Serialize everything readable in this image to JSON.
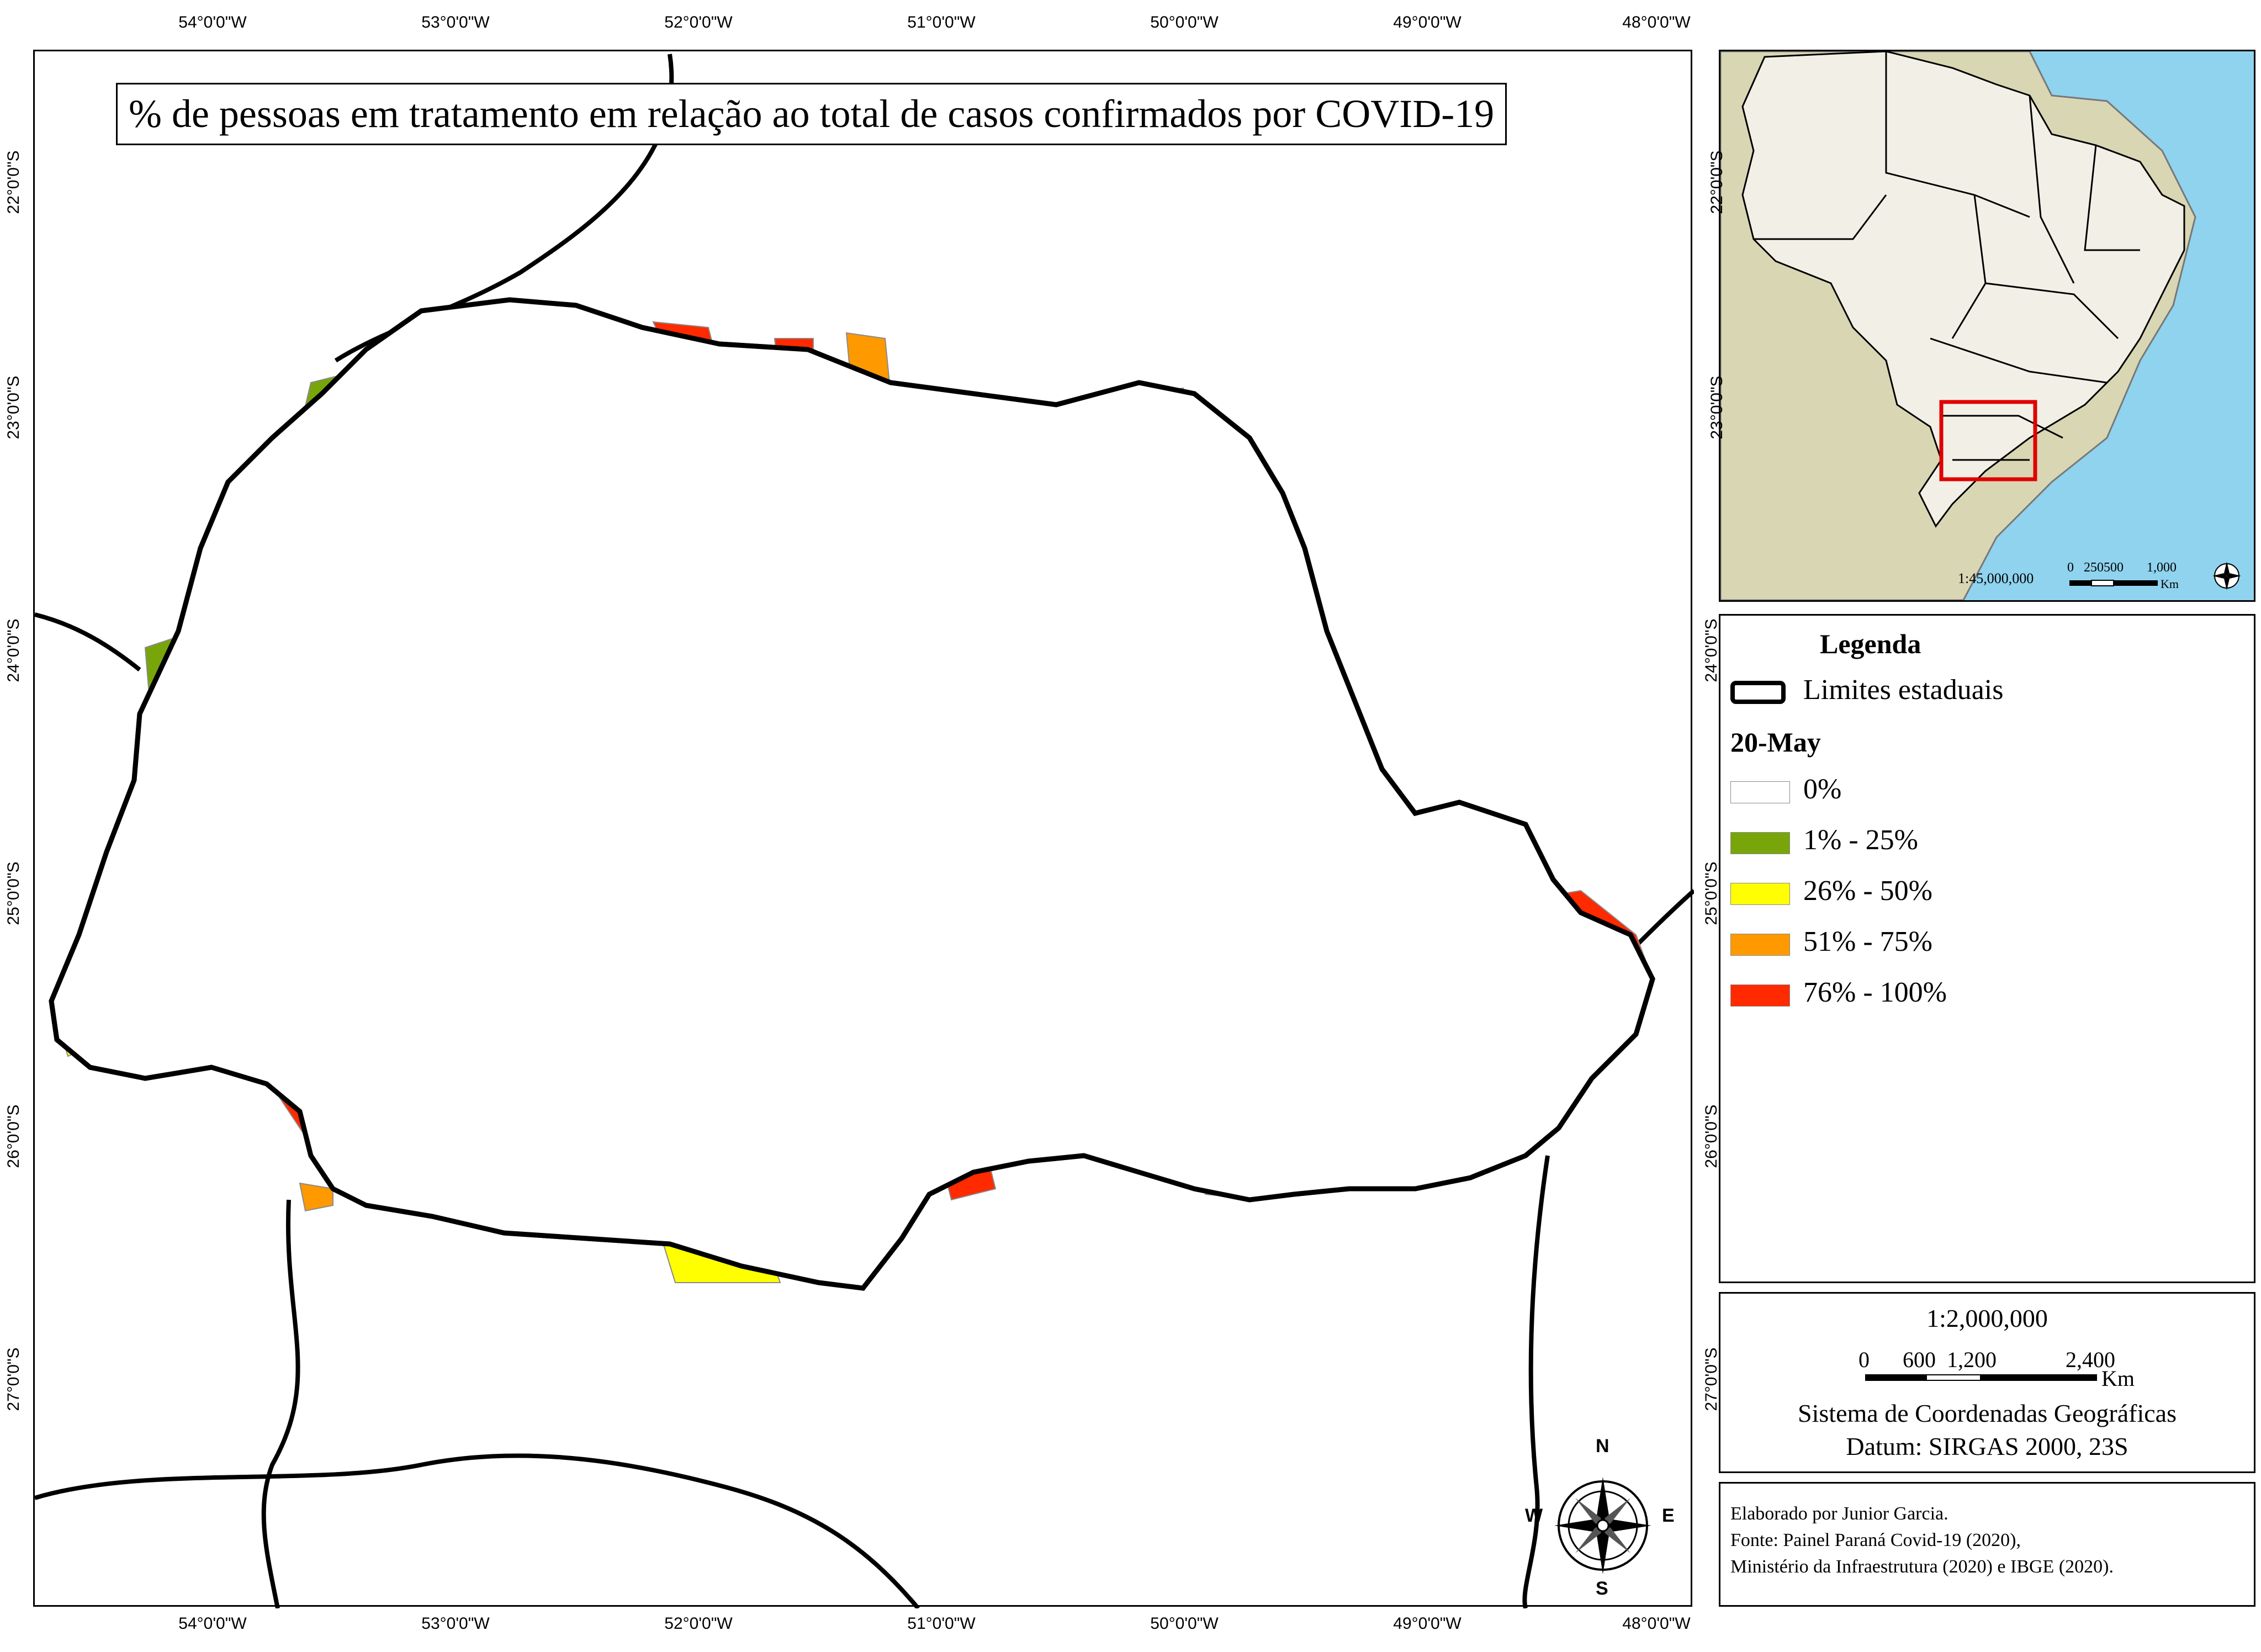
{
  "map": {
    "title": "% de pessoas em tratamento em relação ao total de casos confirmados por COVID-19",
    "lon_ticks": [
      "54°0'0\"W",
      "53°0'0\"W",
      "52°0'0\"W",
      "51°0'0\"W",
      "50°0'0\"W",
      "49°0'0\"W",
      "48°0'0\"W"
    ],
    "lat_ticks": [
      "22°0'0\"S",
      "23°0'0\"S",
      "24°0'0\"S",
      "25°0'0\"S",
      "26°0'0\"S",
      "27°0'0\"S"
    ]
  },
  "inset": {
    "ticks": [
      "22°0'0\"S",
      "23°0'0\"S"
    ],
    "scale_text": "1:45,000,000",
    "scalebar_labels": [
      "0",
      "250500",
      "1,000"
    ],
    "scalebar_unit": "Km"
  },
  "legend": {
    "title": "Legenda",
    "boundary_label": "Limites estaduais",
    "date_label": "20-May",
    "classes": [
      {
        "label": "0%",
        "color": "#ffffff"
      },
      {
        "label": "1% - 25%",
        "color": "#78a60a"
      },
      {
        "label": "26% - 50%",
        "color": "#ffff00"
      },
      {
        "label": "51% - 75%",
        "color": "#ff9900"
      },
      {
        "label": "76% - 100%",
        "color": "#ff2a00"
      }
    ]
  },
  "scale_panel": {
    "scale": "1:2,000,000",
    "scalebar_labels": [
      "0",
      "600",
      "1,200",
      "2,400"
    ],
    "unit": "Km",
    "crs": "Sistema de Coordenadas Geográficas",
    "datum": "Datum: SIRGAS 2000, 23S"
  },
  "credits": {
    "line1": "Elaborado por Junior Garcia.",
    "line2": "Fonte: Painel Paraná Covid-19 (2020),",
    "line3": "Ministério da Infraestrutura (2020) e IBGE (2020)."
  },
  "north_arrow": {
    "n": "N",
    "s": "S",
    "e": "E",
    "w": "W"
  },
  "colors": {
    "ocean": "#8fd3ee",
    "land_other": "#d9d6b4",
    "brazil": "#f2f0e6",
    "highlight": "#e00000",
    "boundary": "#000000"
  }
}
